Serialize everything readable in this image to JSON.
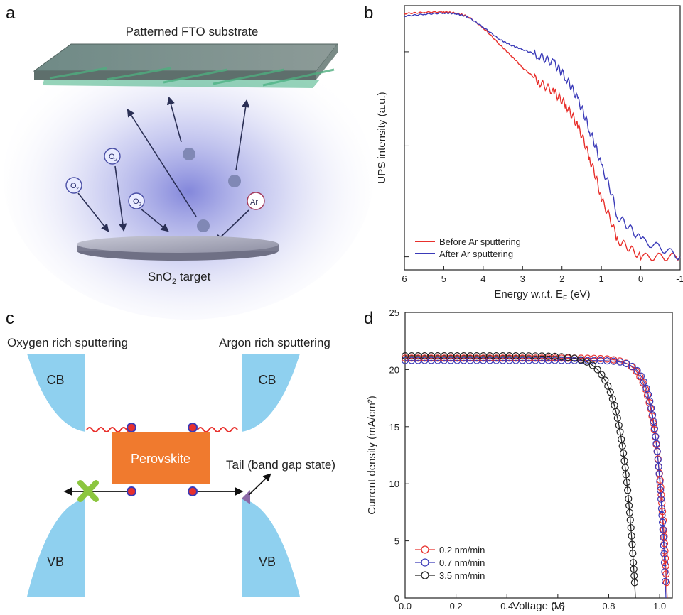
{
  "panels": {
    "a": {
      "label": "a",
      "substrate_label": "Patterned FTO substrate",
      "target_label_prefix": "SnO",
      "target_label_sub": "2",
      "target_label_suffix": " target",
      "molecule_label": "O",
      "molecule_sub": "2",
      "ion_label": "Ar"
    },
    "b": {
      "label": "b",
      "ylabel": "UPS intensity (a.u.)",
      "xlabel_prefix": "Energy w.r.t. E",
      "xlabel_sub": "F",
      "xlabel_suffix": " (eV)",
      "x_ticks": [
        "6",
        "5",
        "4",
        "3",
        "2",
        "1",
        "0",
        "-1"
      ],
      "legend": [
        "Before Ar sputtering",
        "After Ar sputtering"
      ]
    },
    "c": {
      "label": "c",
      "left_title": "Oxygen rich sputtering",
      "right_title": "Argon rich sputtering",
      "cb": "CB",
      "vb": "VB",
      "perovskite": "Perovskite",
      "tail_label": "Tail (band gap state)"
    },
    "d": {
      "label": "d",
      "ylabel": "Current density (mA/cm²)",
      "xlabel": "Voltage (V)",
      "x_ticks": [
        "0.0",
        "0.2",
        "0.4",
        "0.6",
        "0.8",
        "1.0"
      ],
      "y_ticks": [
        "0",
        "5",
        "10",
        "15",
        "20",
        "25"
      ],
      "legend": [
        "0.2 nm/min",
        "0.7 nm/min",
        "3.5 nm/min"
      ]
    }
  },
  "colors": {
    "red": "#e8302c",
    "blue": "#3a3ab8",
    "black": "#222222",
    "band_blue": "#8fd0ef",
    "perovskite": "#f07a2e",
    "cross_green": "#8cc63f"
  },
  "chart_data": [
    {
      "type": "line",
      "title": "",
      "xlabel": "Energy w.r.t. EF (eV)",
      "ylabel": "UPS intensity (a.u.)",
      "xlim": [
        6,
        -1
      ],
      "x_reversed": true,
      "y_scale": "log",
      "legend_position": "bottom-left",
      "series": [
        {
          "name": "Before Ar sputtering",
          "x": [
            6,
            5.5,
            5,
            4.7,
            4.4,
            4,
            3.6,
            3.3,
            3,
            2.6,
            2.2,
            1.9,
            1.6,
            1.3,
            1,
            0.6,
            0,
            -1
          ],
          "y": [
            0.96,
            0.98,
            0.99,
            0.97,
            0.92,
            0.75,
            0.57,
            0.47,
            0.38,
            0.3,
            0.25,
            0.2,
            0.14,
            0.08,
            0.04,
            0.02,
            0.015,
            0.015
          ]
        },
        {
          "name": "After Ar sputtering",
          "x": [
            6,
            5.5,
            5,
            4.7,
            4.4,
            4,
            3.6,
            3.3,
            3,
            2.6,
            2.2,
            1.9,
            1.6,
            1.3,
            1,
            0.6,
            0,
            -1
          ],
          "y": [
            0.92,
            0.95,
            0.97,
            0.96,
            0.91,
            0.76,
            0.62,
            0.56,
            0.52,
            0.47,
            0.41,
            0.32,
            0.22,
            0.13,
            0.07,
            0.03,
            0.02,
            0.015
          ]
        }
      ]
    },
    {
      "type": "scatter",
      "title": "",
      "xlabel": "Voltage (V)",
      "ylabel": "Current density (mA/cm²)",
      "xlim": [
        0,
        1.05
      ],
      "ylim": [
        0,
        25
      ],
      "legend_position": "bottom-left",
      "series": [
        {
          "name": "0.2 nm/min",
          "Jsc": 21.0,
          "Voc": 1.03,
          "curvature": 0.042
        },
        {
          "name": "0.7 nm/min",
          "Jsc": 20.8,
          "Voc": 1.025,
          "curvature": 0.036
        },
        {
          "name": "3.5 nm/min",
          "Jsc": 21.2,
          "Voc": 0.905,
          "curvature": 0.052
        }
      ]
    }
  ]
}
